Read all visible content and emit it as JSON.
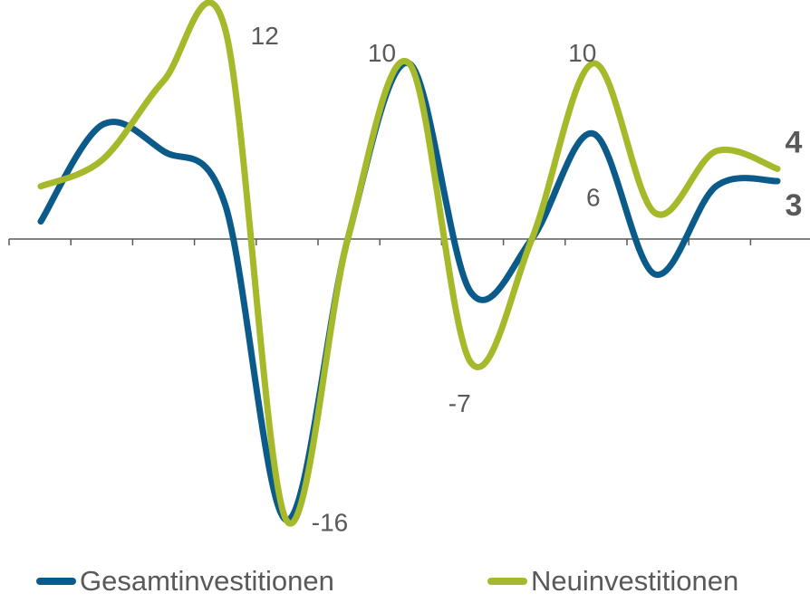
{
  "chart_data": {
    "type": "line",
    "title": "",
    "xlabel": "",
    "ylabel": "",
    "x": [
      0,
      1,
      2,
      3,
      4,
      5,
      6,
      7,
      8,
      9,
      10,
      11,
      12
    ],
    "ylim": [
      -18,
      14
    ],
    "grid": false,
    "legend_position": "bottom",
    "colors": {
      "series1": "#0b5b8a",
      "series2": "#a5b92a",
      "axis": "#595959",
      "text": "#595959"
    },
    "series": [
      {
        "name": "Gesamtinvestitionen",
        "color": "#0b5b8a",
        "values": [
          1,
          6.5,
          5,
          2,
          -16,
          0,
          10,
          -3,
          0,
          6,
          -2,
          3,
          3.3
        ]
      },
      {
        "name": "Neuinvestitionen",
        "color": "#a5b92a",
        "values": [
          3,
          4.5,
          9,
          12,
          -16,
          0,
          10,
          -7,
          0,
          10,
          1.5,
          5,
          4
        ]
      }
    ],
    "annotations": [
      {
        "text": "12",
        "series": 1,
        "index": 3
      },
      {
        "text": "10",
        "series": 0,
        "index": 6
      },
      {
        "text": "10",
        "series": 1,
        "index": 9
      },
      {
        "text": "6",
        "series": 0,
        "index": 9
      },
      {
        "text": "-7",
        "series": 1,
        "index": 7
      },
      {
        "text": "-16",
        "series": 0,
        "index": 4
      }
    ],
    "end_labels": [
      {
        "text": "4",
        "series": 1
      },
      {
        "text": "3",
        "series": 0
      }
    ]
  }
}
